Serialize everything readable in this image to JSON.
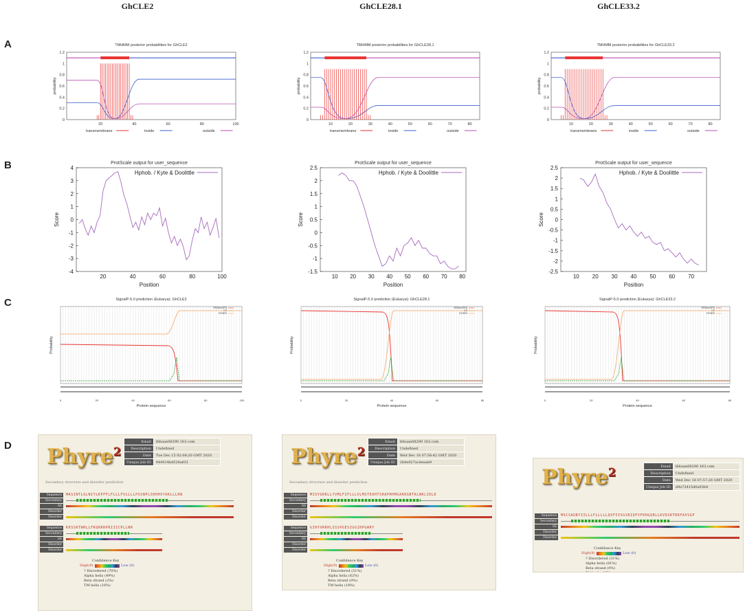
{
  "columns": [
    "GhCLE2",
    "GhCLE28.1",
    "GhCLE33.2"
  ],
  "row_labels": [
    "A",
    "B",
    "C",
    "D"
  ],
  "tmhmm": [
    {
      "title": "TMHMM posterior probabilities for GhCLE2",
      "xmax": 100,
      "xticks": [
        "20",
        "40",
        "60",
        "80",
        "100"
      ],
      "tm_range": [
        20,
        37
      ]
    },
    {
      "title": "TMHMM posterior probabilities for GhCLE28.1",
      "xmax": 85,
      "xticks": [
        "10",
        "20",
        "30",
        "40",
        "50",
        "60",
        "70",
        "80"
      ],
      "tm_range": [
        7,
        28
      ]
    },
    {
      "title": "TMHMM posterior probabilities for GhCLE33.2",
      "xmax": 85,
      "xticks": [
        "10",
        "20",
        "30",
        "40",
        "50",
        "60",
        "70",
        "80"
      ],
      "tm_range": [
        7,
        26
      ]
    }
  ],
  "tmhmm_common": {
    "ylabel": "probability",
    "yticks": [
      "0",
      "0.2",
      "0.4",
      "0.6",
      "0.8",
      "1",
      "1.2"
    ],
    "legend": [
      "transmembrane",
      "inside",
      "outside"
    ],
    "colors": {
      "transmembrane": "#e8322f",
      "inside": "#3a5fcd",
      "outside": "#b84fb0"
    }
  },
  "protscale": [
    {
      "title": "ProtScale output for user_sequence",
      "legend": "Hphob. / Kyte & Doolittle",
      "ylabel": "Score",
      "xlabel": "Position",
      "yticks": [
        "4",
        "3",
        "2",
        "1",
        "0",
        "-1",
        "-2",
        "-3",
        "-4"
      ],
      "ylim": [
        -4,
        4
      ],
      "xticks": [
        "20",
        "40",
        "60",
        "80",
        "100"
      ],
      "xlim": [
        2,
        100
      ],
      "x": [
        4,
        6,
        8,
        10,
        12,
        14,
        16,
        18,
        20,
        22,
        24,
        26,
        28,
        30,
        32,
        34,
        36,
        38,
        40,
        42,
        44,
        46,
        48,
        50,
        52,
        54,
        56,
        58,
        60,
        62,
        64,
        66,
        68,
        70,
        72,
        74,
        76,
        78,
        80,
        82,
        84,
        86,
        88,
        90,
        92,
        94,
        96,
        98
      ],
      "y": [
        -0.3,
        0,
        -0.7,
        -1.2,
        -0.5,
        -1.0,
        -0.2,
        0.3,
        2.2,
        3.0,
        3.2,
        3.4,
        3.6,
        3.7,
        2.9,
        1.9,
        1.2,
        0.3,
        -0.6,
        -0.2,
        -0.8,
        0.2,
        -0.4,
        0.5,
        0.0,
        0.5,
        0.3,
        0.9,
        -0.5,
        0.1,
        -1.0,
        -1.8,
        -1.3,
        -2.0,
        -1.5,
        -2.1,
        -3.1,
        -2.8,
        -1.6,
        -0.7,
        -1.0,
        0.2,
        -0.7,
        -0.2,
        -1.2,
        -0.6,
        0.1,
        -1.4
      ]
    },
    {
      "title": "ProtScale output for user_sequence",
      "legend": "Hphob. / Kyte & Doolittle",
      "ylabel": "Score",
      "xlabel": "Position",
      "yticks": [
        "2.5",
        "2",
        "1.5",
        "1",
        "0.5",
        "0",
        "-0.5",
        "-1",
        "-1.5"
      ],
      "ylim": [
        -1.5,
        2.5
      ],
      "xticks": [
        "10",
        "20",
        "30",
        "40",
        "50",
        "60",
        "70",
        "80"
      ],
      "xlim": [
        2,
        82
      ],
      "x": [
        12,
        14,
        16,
        18,
        20,
        22,
        24,
        26,
        28,
        30,
        32,
        34,
        36,
        38,
        40,
        42,
        44,
        46,
        48,
        50,
        52,
        54,
        56,
        58,
        60,
        62,
        64,
        66,
        68,
        70,
        72,
        74,
        76,
        78
      ],
      "y": [
        2.2,
        2.3,
        2.2,
        2.0,
        2.0,
        1.8,
        1.4,
        1.0,
        0.5,
        0.0,
        -0.5,
        -0.9,
        -1.3,
        -1.2,
        -0.9,
        -1.1,
        -0.6,
        -0.9,
        -0.5,
        -0.4,
        -0.2,
        -0.5,
        -0.3,
        -0.6,
        -0.6,
        -0.8,
        -0.9,
        -0.9,
        -1.2,
        -1.1,
        -1.3,
        -1.4,
        -1.4,
        -1.3
      ]
    },
    {
      "title": "ProtScale output for user_sequence",
      "legend": "Hphob. / Kyte & Doolittle",
      "ylabel": "Score",
      "xlabel": "Position",
      "yticks": [
        "2.5",
        "2",
        "1.5",
        "1",
        "0.5",
        "0",
        "-0.5",
        "-1",
        "-1.5",
        "-2",
        "-2.5"
      ],
      "ylim": [
        -2.5,
        2.5
      ],
      "xticks": [
        "10",
        "20",
        "30",
        "40",
        "50",
        "60",
        "70"
      ],
      "xlim": [
        2,
        78
      ],
      "x": [
        12,
        14,
        16,
        18,
        20,
        22,
        24,
        26,
        28,
        30,
        32,
        34,
        36,
        38,
        40,
        42,
        44,
        46,
        48,
        50,
        52,
        54,
        56,
        58,
        60,
        62,
        64,
        66,
        68,
        70,
        72,
        74
      ],
      "y": [
        2.0,
        1.9,
        1.6,
        1.8,
        2.2,
        1.6,
        1.3,
        0.8,
        0.5,
        0.0,
        -0.4,
        -0.2,
        -0.5,
        -0.3,
        -0.6,
        -0.8,
        -0.6,
        -0.9,
        -0.8,
        -1.1,
        -1.2,
        -1.1,
        -1.5,
        -1.4,
        -1.6,
        -1.8,
        -1.6,
        -1.9,
        -2.1,
        -1.9,
        -2.1,
        -2.2
      ]
    }
  ],
  "signalp": [
    {
      "title": "SignalP-5.0 prediction (Eukarya): GhCLE2",
      "ylabel": "Probability",
      "xlabel": "Protein sequence",
      "xticks": [
        "0",
        "20",
        "40",
        "60",
        "80",
        "100"
      ],
      "legend": [
        "SP(Sec/SPI)",
        "CS",
        "OTHER"
      ],
      "cut": 40
    },
    {
      "title": "SignalP-5.0 prediction (Eukarya): GhCLE28.1",
      "ylabel": "Probability",
      "xlabel": "Protein sequence",
      "xticks": [
        "0",
        "20",
        "40",
        "60",
        "80"
      ],
      "legend": [
        "SP(Sec/SPI)",
        "CS",
        "OTHER"
      ],
      "cut": 30
    },
    {
      "title": "SignalP-5.0 prediction (Eukarya): GhCLE33.2",
      "ylabel": "Probability",
      "xlabel": "Protein sequence",
      "xticks": [
        "0",
        "20",
        "40",
        "60",
        "80"
      ],
      "legend": [
        "SP(Sec/SPI)",
        "CS",
        "OTHER"
      ],
      "cut": 25
    }
  ],
  "phyre": [
    {
      "logo": "Phyre",
      "logo_sup": "2",
      "info": [
        [
          "Email",
          "lbhuan08290 163.com"
        ],
        [
          "Description",
          "Undefined"
        ],
        [
          "Date",
          "Tue Dec 15 02:08:20 GMT 2020"
        ],
        [
          "Unique Job ID",
          "444014bd526a651"
        ]
      ],
      "ss_heading": "Secondary structure and disorder prediction",
      "tracks": [
        "Sequence",
        "Secondary structure",
        "SS confidence",
        "Disorder",
        "Disorder confidence"
      ],
      "seq1": "MASINTLGLNIYLKPFFLFLLLFVLLLLPSSNPLSHHHVYAKLLLRN",
      "seq2": "KKSSKTWRLLFKQRRRPRIIICPLLNR",
      "confidence_key": {
        "title": "Confidence Key",
        "scale": "High(9)",
        "low": "Low (0)",
        "items": [
          "? Disordered (70%)",
          "Alpha helix (49%)",
          "Beta strand (2%)",
          "TM helix (16%)"
        ]
      }
    },
    {
      "logo": "Phyre",
      "logo_sup": "2",
      "info": [
        [
          "Email",
          "lbhuan08290 163.com"
        ],
        [
          "Description",
          "Undefined"
        ],
        [
          "Date",
          "Wed Dec 16 07:56:42 GMT 2020"
        ],
        [
          "Unique Job ID",
          "2b8e027acdeaab9"
        ]
      ],
      "ss_heading": "Secondary structure and disorder prediction",
      "tracks": [
        "Sequence",
        "Secondary structure",
        "SS confidence",
        "Disorder",
        "Disorder confidence"
      ],
      "seq1": "MISYGRRLLYVMLFIFLLLVLMSTEAHTSRAPHHMGAKDGNTKLNKLIDLD",
      "seq2": "GIHYVRRHLSSSPGESIGGIHPGWRY",
      "confidence_key": {
        "title": "Confidence Key",
        "scale": "High(9)",
        "low": "Low (0)",
        "items": [
          "? Disordered (51%)",
          "Alpha helix (62%)",
          "Beta strand (0%)",
          "TM helix (18%)"
        ]
      }
    },
    {
      "logo": "Phyre",
      "logo_sup": "2",
      "info": [
        [
          "Email",
          "lbhuan08290 163.com"
        ],
        [
          "Description",
          "Undefined"
        ],
        [
          "Date",
          "Wed Dec 16 07:57:26 GMT 2020"
        ],
        [
          "Unique Job ID",
          "d9a73415d0a93b4"
        ]
      ],
      "ss_heading": "",
      "tracks": [
        "Sequence",
        "Secondary structure",
        "SS confidence",
        "Disorder",
        "Disorder confidence"
      ],
      "seq1": "MSCSAQBYIILLLFLLLLLQVFIVSGSRIDFVFRHGQRLLKVDSRTRKPAVSGP",
      "seq2": "",
      "confidence_key": {
        "title": "Confidence Key",
        "scale": "High(9)",
        "low": "Low (0)",
        "items": [
          "? Disordered (31%)",
          "Alpha helix (81%)",
          "Beta strand (0%)",
          "TM helix (27%)"
        ]
      }
    }
  ]
}
